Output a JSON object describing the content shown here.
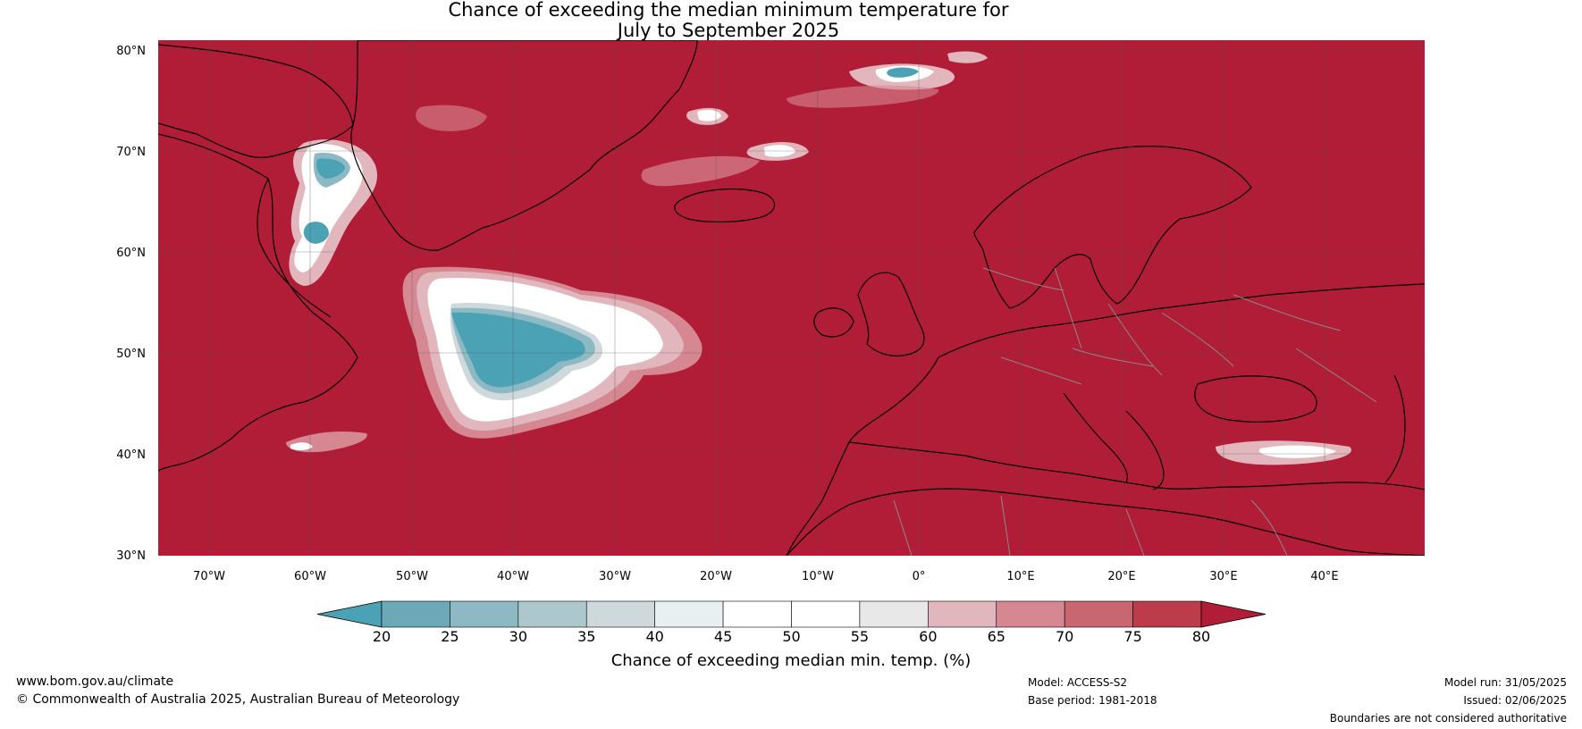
{
  "title_line1": "Chance of exceeding the median minimum temperature for",
  "title_line2": "July to September 2025",
  "map": {
    "lat_labels": [
      "80°N",
      "70°N",
      "60°N",
      "50°N",
      "40°N",
      "30°N"
    ],
    "lon_labels": [
      "70°W",
      "60°W",
      "50°W",
      "40°W",
      "30°W",
      "20°W",
      "10°W",
      "0°",
      "10°E",
      "20°E",
      "30°E",
      "40°E"
    ],
    "background_color": "#b11c36"
  },
  "colorbar": {
    "ticks": [
      "20",
      "25",
      "30",
      "35",
      "40",
      "45",
      "50",
      "55",
      "60",
      "65",
      "70",
      "75",
      "80"
    ],
    "colors": [
      "#4aa2b4",
      "#6aaab8",
      "#8db9c4",
      "#adc8cd",
      "#cfd9dc",
      "#e9f0f1",
      "#ffffff",
      "#ffffff",
      "#e8e8e8",
      "#e2b6bd",
      "#d58892",
      "#c8676f",
      "#bc3c4b",
      "#b11c36"
    ],
    "label": "Chance of exceeding median min. temp. (%)"
  },
  "footer": {
    "website": "www.bom.gov.au/climate",
    "copyright": "© Commonwealth of Australia 2025, Australian Bureau of Meteorology",
    "model": "Model: ACCESS-S2",
    "base_period": "Base period: 1981-2018",
    "model_run": "Model run: 31/05/2025",
    "issued": "Issued: 02/06/2025",
    "boundaries": "Boundaries are not considered authoritative"
  }
}
